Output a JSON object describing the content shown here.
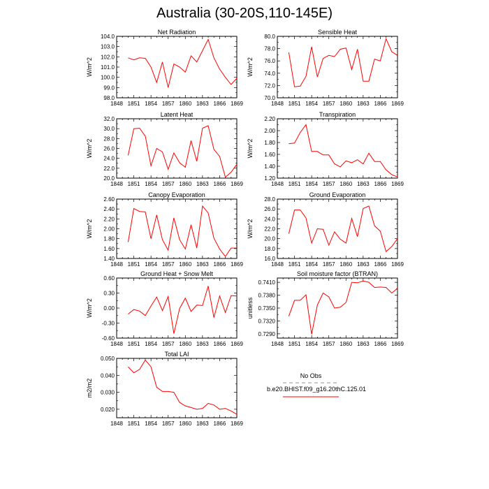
{
  "title": "Australia (30-20S,110-145E)",
  "colors": {
    "model": "#ff0000",
    "obs": "#a6a6a6",
    "axis": "#000000"
  },
  "legend": {
    "entries": [
      {
        "label": "No Obs",
        "style": "dashed",
        "color": "#a6a6a6"
      },
      {
        "label": "b.e20.BHIST.f09_g16.20thC.125.01",
        "style": "solid",
        "color": "#ff0000"
      }
    ]
  },
  "chart_data": [
    {
      "type": "line",
      "title": "Net Radiation",
      "ylabel": "W/m^2",
      "xlim": [
        1848,
        1869
      ],
      "ylim": [
        98.0,
        104.0
      ],
      "xticks": [
        1848,
        1851,
        1854,
        1857,
        1860,
        1863,
        1866,
        1869
      ],
      "yticks": [
        "98.0",
        "99.0",
        "100.0",
        "101.0",
        "102.0",
        "103.0",
        "104.0"
      ],
      "yminor": [
        98.5,
        99.5,
        100.5,
        101.5,
        102.5,
        103.5
      ],
      "series": [
        {
          "x": [
            1850,
            1851,
            1852,
            1853,
            1854,
            1855,
            1856,
            1857,
            1858,
            1859,
            1860,
            1861,
            1862,
            1863,
            1864,
            1865,
            1866,
            1867,
            1868,
            1869
          ],
          "values": [
            101.9,
            101.7,
            101.9,
            101.85,
            101.0,
            99.5,
            101.5,
            99.0,
            101.3,
            101.0,
            100.5,
            102.1,
            101.5,
            102.6,
            103.7,
            101.9,
            100.8,
            100.0,
            99.3,
            99.9
          ]
        }
      ]
    },
    {
      "type": "line",
      "title": "Sensible Heat",
      "ylabel": "W/m^2",
      "xlim": [
        1848,
        1869
      ],
      "ylim": [
        70.0,
        80.0
      ],
      "xticks": [
        1848,
        1851,
        1854,
        1857,
        1860,
        1863,
        1866,
        1869
      ],
      "yticks": [
        "70.0",
        "72.0",
        "74.0",
        "76.0",
        "78.0",
        "80.0"
      ],
      "yminor": [
        71,
        73,
        75,
        77,
        79
      ],
      "series": [
        {
          "x": [
            1850,
            1851,
            1852,
            1853,
            1854,
            1855,
            1856,
            1857,
            1858,
            1859,
            1860,
            1861,
            1862,
            1863,
            1864,
            1865,
            1866,
            1867,
            1868,
            1869
          ],
          "values": [
            77.4,
            71.8,
            71.9,
            73.5,
            78.3,
            73.4,
            76.4,
            76.9,
            76.7,
            77.9,
            78.1,
            74.6,
            77.9,
            72.7,
            72.7,
            76.3,
            76.0,
            79.6,
            77.5,
            76.9
          ]
        }
      ]
    },
    {
      "type": "line",
      "title": "Latent Heat",
      "ylabel": "W/m^2",
      "xlim": [
        1848,
        1869
      ],
      "ylim": [
        20.0,
        32.0
      ],
      "xticks": [
        1848,
        1851,
        1854,
        1857,
        1860,
        1863,
        1866,
        1869
      ],
      "yticks": [
        "20.0",
        "22.0",
        "24.0",
        "26.0",
        "28.0",
        "30.0",
        "32.0"
      ],
      "yminor": [
        21,
        23,
        25,
        27,
        29,
        31
      ],
      "series": [
        {
          "x": [
            1850,
            1851,
            1852,
            1853,
            1854,
            1855,
            1856,
            1857,
            1858,
            1859,
            1860,
            1861,
            1862,
            1863,
            1864,
            1865,
            1866,
            1867,
            1868,
            1869
          ],
          "values": [
            24.6,
            30.0,
            30.1,
            28.5,
            22.5,
            26.0,
            25.3,
            21.8,
            25.1,
            23.1,
            22.2,
            27.6,
            23.4,
            30.1,
            30.6,
            25.8,
            24.4,
            20.2,
            21.2,
            22.8
          ]
        }
      ]
    },
    {
      "type": "line",
      "title": "Transpiration",
      "ylabel": "W/m^2",
      "xlim": [
        1848,
        1869
      ],
      "ylim": [
        1.2,
        2.2
      ],
      "xticks": [
        1848,
        1851,
        1854,
        1857,
        1860,
        1863,
        1866,
        1869
      ],
      "yticks": [
        "1.20",
        "1.40",
        "1.60",
        "1.80",
        "2.00",
        "2.20"
      ],
      "yminor": [
        1.3,
        1.5,
        1.7,
        1.9,
        2.1
      ],
      "series": [
        {
          "x": [
            1850,
            1851,
            1852,
            1853,
            1854,
            1855,
            1856,
            1857,
            1858,
            1859,
            1860,
            1861,
            1862,
            1863,
            1864,
            1865,
            1866,
            1867,
            1868,
            1869
          ],
          "values": [
            1.78,
            1.79,
            1.97,
            2.1,
            1.65,
            1.65,
            1.59,
            1.59,
            1.44,
            1.39,
            1.49,
            1.46,
            1.51,
            1.44,
            1.62,
            1.48,
            1.48,
            1.34,
            1.26,
            1.22
          ]
        }
      ]
    },
    {
      "type": "line",
      "title": "Canopy Evaporation",
      "ylabel": "W/m^2",
      "xlim": [
        1848,
        1869
      ],
      "ylim": [
        1.4,
        2.6
      ],
      "xticks": [
        1848,
        1851,
        1854,
        1857,
        1860,
        1863,
        1866,
        1869
      ],
      "yticks": [
        "1.40",
        "1.60",
        "1.80",
        "2.00",
        "2.20",
        "2.40",
        "2.60"
      ],
      "yminor": [
        1.5,
        1.7,
        1.9,
        2.1,
        2.3,
        2.5
      ],
      "series": [
        {
          "x": [
            1850,
            1851,
            1852,
            1853,
            1854,
            1855,
            1856,
            1857,
            1858,
            1859,
            1860,
            1861,
            1862,
            1863,
            1864,
            1865,
            1866,
            1867,
            1868,
            1869
          ],
          "values": [
            1.73,
            2.41,
            2.35,
            2.34,
            1.8,
            2.28,
            1.78,
            1.57,
            2.22,
            1.78,
            1.59,
            2.08,
            1.61,
            2.46,
            2.32,
            1.81,
            1.59,
            1.44,
            1.61,
            1.61
          ]
        }
      ]
    },
    {
      "type": "line",
      "title": "Ground Evaporation",
      "ylabel": "W/m^2",
      "xlim": [
        1848,
        1869
      ],
      "ylim": [
        16.0,
        28.0
      ],
      "xticks": [
        1848,
        1851,
        1854,
        1857,
        1860,
        1863,
        1866,
        1869
      ],
      "yticks": [
        "16.0",
        "18.0",
        "20.0",
        "22.0",
        "24.0",
        "26.0",
        "28.0"
      ],
      "yminor": [
        17,
        19,
        21,
        23,
        25,
        27
      ],
      "series": [
        {
          "x": [
            1850,
            1851,
            1852,
            1853,
            1854,
            1855,
            1856,
            1857,
            1858,
            1859,
            1860,
            1861,
            1862,
            1863,
            1864,
            1865,
            1866,
            1867,
            1868,
            1869
          ],
          "values": [
            21.0,
            25.8,
            25.8,
            24.2,
            19.1,
            22.0,
            21.9,
            18.7,
            21.4,
            19.9,
            19.1,
            24.1,
            20.4,
            26.1,
            26.6,
            22.6,
            21.5,
            17.4,
            18.4,
            20.0
          ]
        }
      ]
    },
    {
      "type": "line",
      "title": "Ground Heat + Snow Melt",
      "ylabel": "W/m^2",
      "xlim": [
        1848,
        1869
      ],
      "ylim": [
        -0.6,
        0.6
      ],
      "xticks": [
        1848,
        1851,
        1854,
        1857,
        1860,
        1863,
        1866,
        1869
      ],
      "yticks": [
        "-0.60",
        "-0.30",
        "0.00",
        "0.30",
        "0.60"
      ],
      "yminor": [
        -0.45,
        -0.15,
        0.15,
        0.45
      ],
      "series": [
        {
          "x": [
            1850,
            1851,
            1852,
            1853,
            1854,
            1855,
            1856,
            1857,
            1858,
            1859,
            1860,
            1861,
            1862,
            1863,
            1864,
            1865,
            1866,
            1867,
            1868,
            1869
          ],
          "values": [
            -0.12,
            -0.03,
            -0.06,
            -0.15,
            0.04,
            0.22,
            -0.05,
            0.23,
            -0.51,
            -0.01,
            0.2,
            -0.07,
            0.06,
            0.05,
            0.44,
            -0.19,
            0.24,
            -0.09,
            0.25,
            0.24
          ]
        }
      ]
    },
    {
      "type": "line",
      "title": "Soil moisture factor (BTRAN)",
      "ylabel": "unitless",
      "xlim": [
        1848,
        1869
      ],
      "ylim": [
        0.728,
        0.742
      ],
      "xticks": [
        1848,
        1851,
        1854,
        1857,
        1860,
        1863,
        1866,
        1869
      ],
      "yticks": [
        "0.7290",
        "0.7320",
        "0.7350",
        "0.7380",
        "0.7410"
      ],
      "ytickvals": [
        0.729,
        0.732,
        0.735,
        0.738,
        0.741
      ],
      "yminor": [
        0.7305,
        0.7335,
        0.7365,
        0.7395
      ],
      "series": [
        {
          "x": [
            1850,
            1851,
            1852,
            1853,
            1854,
            1855,
            1856,
            1857,
            1858,
            1859,
            1860,
            1861,
            1862,
            1863,
            1864,
            1865,
            1866,
            1867,
            1868,
            1869
          ],
          "values": [
            0.7331,
            0.7368,
            0.7368,
            0.7381,
            0.7289,
            0.7357,
            0.7385,
            0.7376,
            0.735,
            0.7352,
            0.7363,
            0.741,
            0.7409,
            0.7413,
            0.741,
            0.7398,
            0.7399,
            0.7398,
            0.7385,
            0.7396
          ]
        }
      ]
    },
    {
      "type": "line",
      "title": "Total LAI",
      "ylabel": "m2/m2",
      "xlim": [
        1848,
        1869
      ],
      "ylim": [
        0.015,
        0.05
      ],
      "xticks": [
        1848,
        1851,
        1854,
        1857,
        1860,
        1863,
        1866,
        1869
      ],
      "yticks": [
        "0.020",
        "0.030",
        "0.040",
        "0.050"
      ],
      "ytickvals": [
        0.02,
        0.03,
        0.04,
        0.05
      ],
      "yminor": [
        0.025,
        0.035,
        0.045
      ],
      "series": [
        {
          "x": [
            1850,
            1851,
            1852,
            1853,
            1854,
            1855,
            1856,
            1857,
            1858,
            1859,
            1860,
            1861,
            1862,
            1863,
            1864,
            1865,
            1866,
            1867,
            1868,
            1869
          ],
          "values": [
            0.045,
            0.0415,
            0.0435,
            0.049,
            0.045,
            0.033,
            0.0305,
            0.0305,
            0.03,
            0.024,
            0.022,
            0.021,
            0.02,
            0.0205,
            0.0235,
            0.0225,
            0.02,
            0.0205,
            0.019,
            0.017
          ]
        }
      ]
    }
  ]
}
